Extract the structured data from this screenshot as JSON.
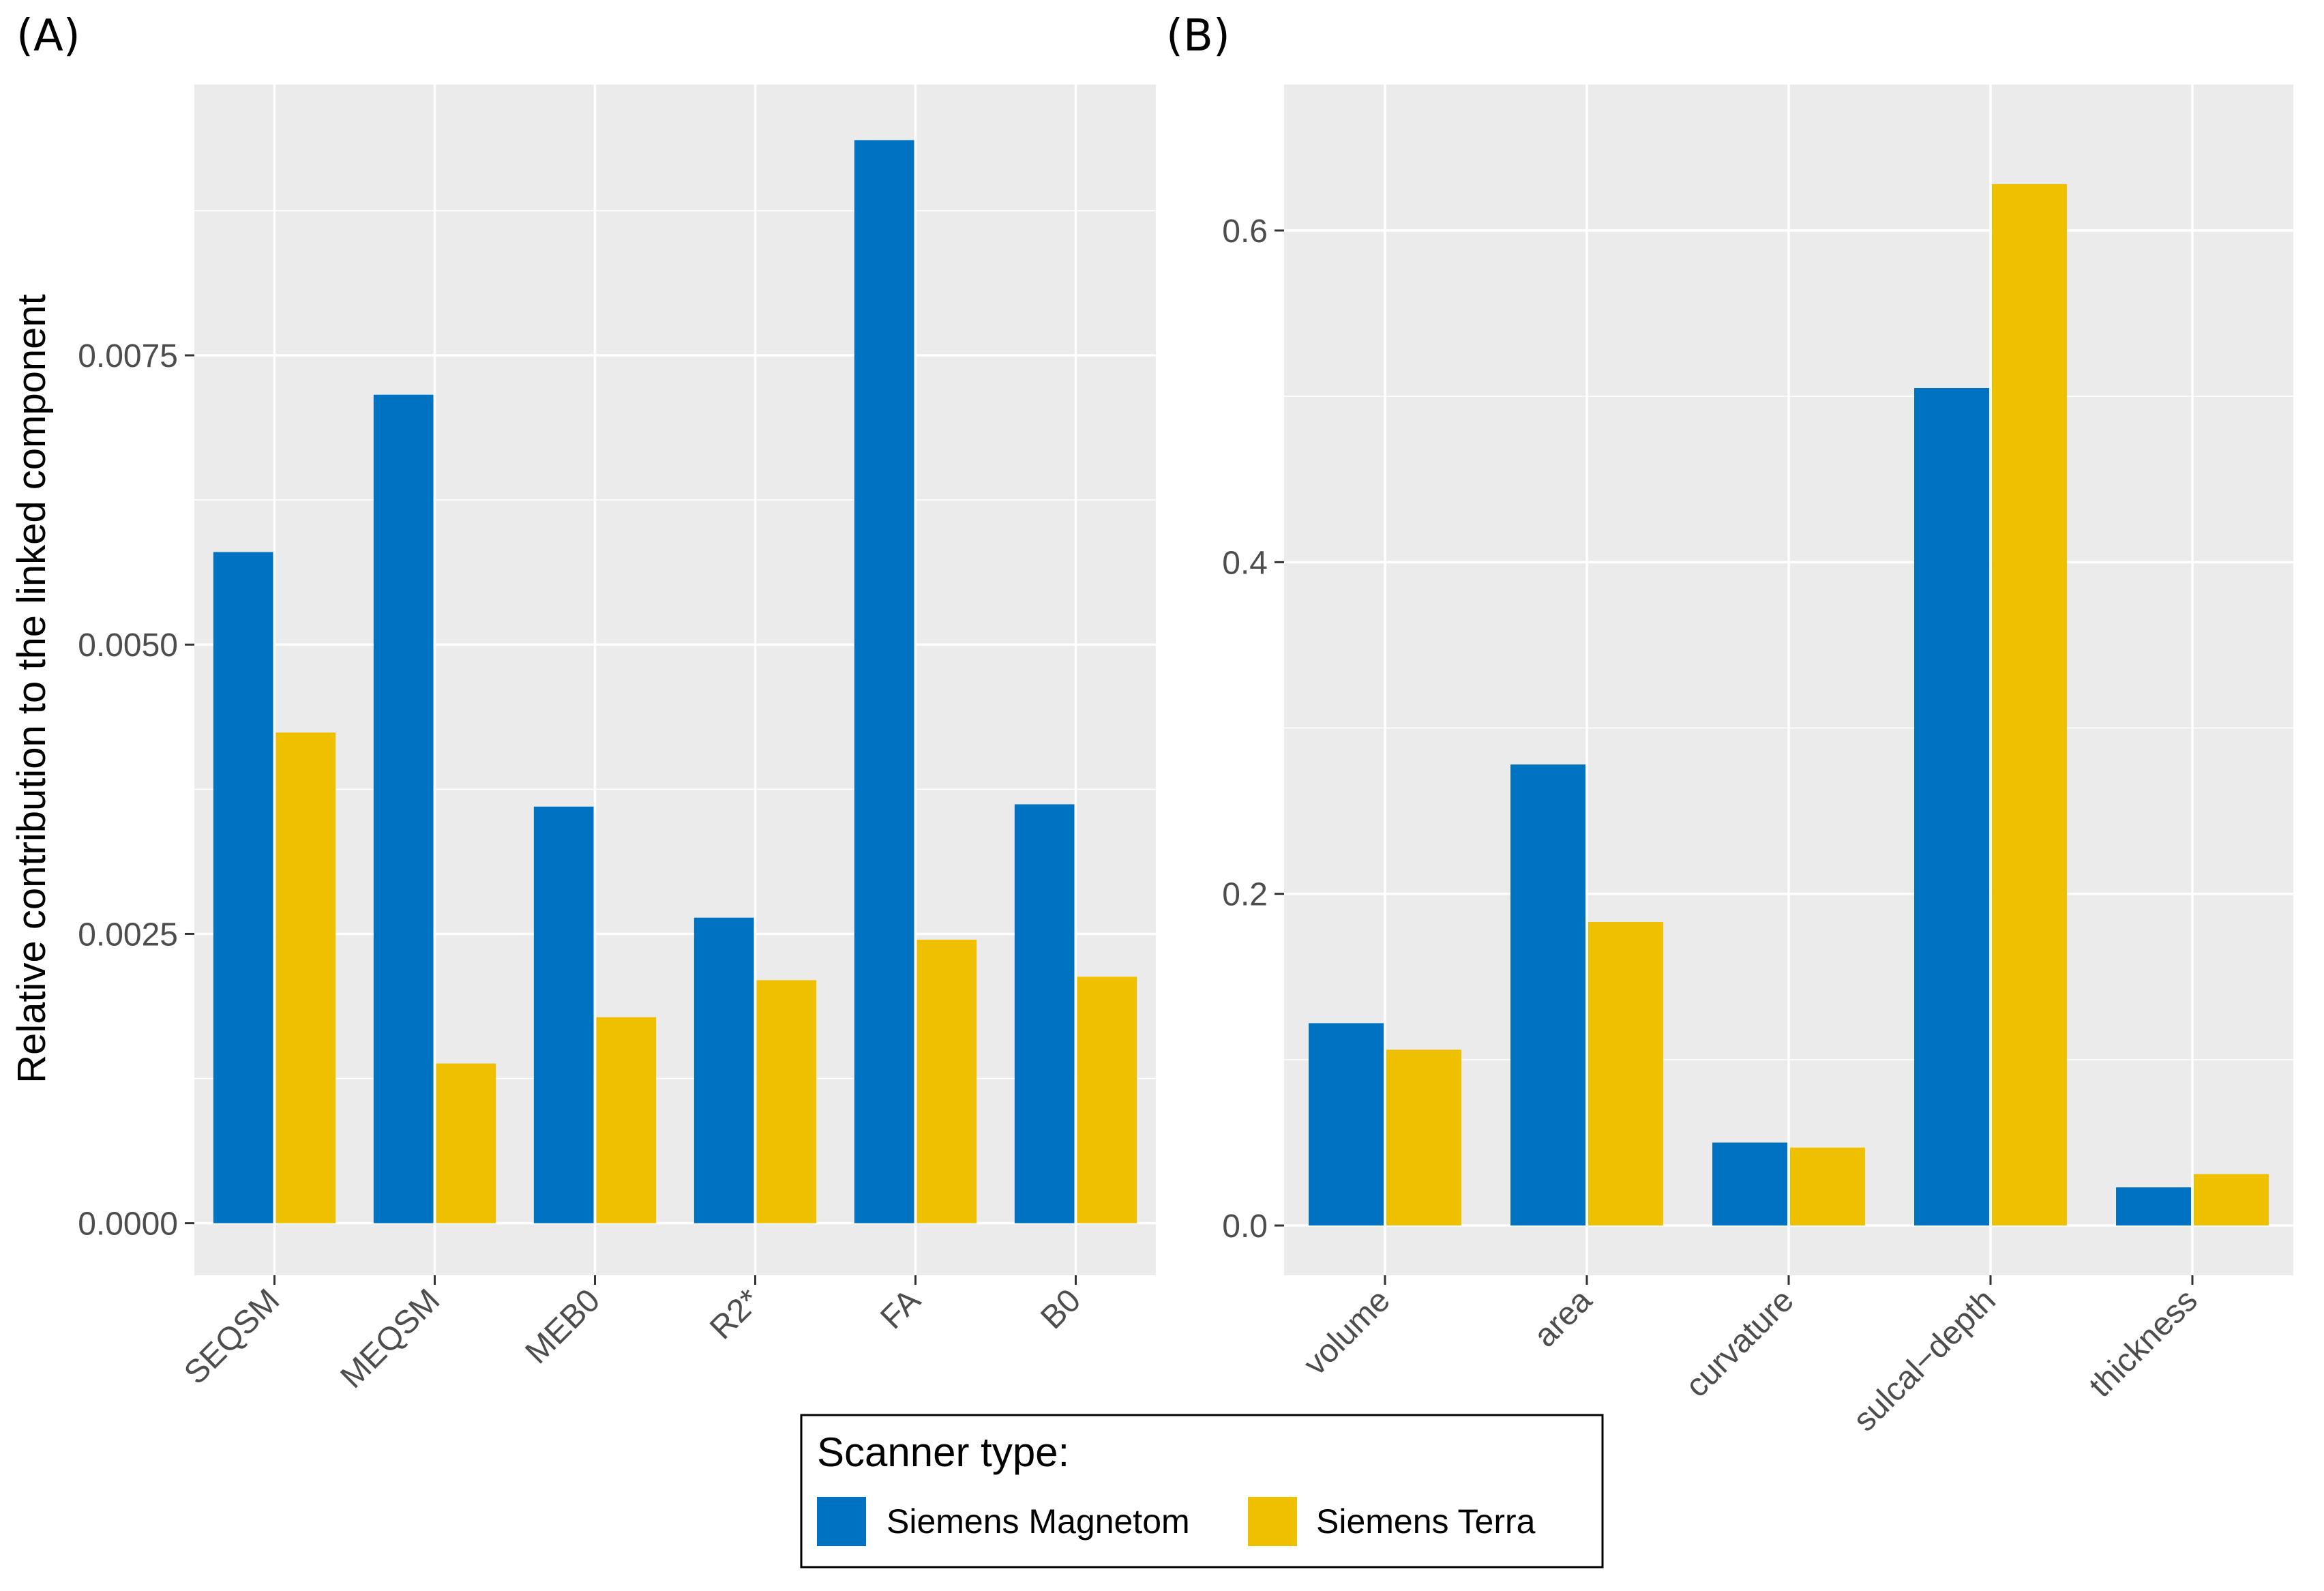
{
  "legend": {
    "title": "Scanner type:",
    "entries": [
      {
        "name": "Siemens Magnetom",
        "color": "#0072c2"
      },
      {
        "name": "Siemens Terra",
        "color": "#efc000"
      }
    ]
  },
  "chart_data": [
    {
      "type": "bar",
      "panel_label": "(A)",
      "title": "",
      "xlabel": "",
      "ylabel": "Relative contribution to the linked component",
      "categories": [
        "SEQSM",
        "MEQSM",
        "MEB0",
        "R2*",
        "FA",
        "B0"
      ],
      "series": [
        {
          "name": "Siemens Magnetom",
          "values": [
            0.0058,
            0.00716,
            0.0036,
            0.00264,
            0.00936,
            0.00362
          ]
        },
        {
          "name": "Siemens Terra",
          "values": [
            0.00424,
            0.00138,
            0.00178,
            0.0021,
            0.00245,
            0.00213
          ]
        }
      ],
      "yticks": [
        0.0,
        0.0025,
        0.005,
        0.0075
      ],
      "ytick_labels": [
        "0.0000",
        "0.0025",
        "0.0050",
        "0.0075"
      ],
      "ylim": [
        -0.00045,
        0.00984
      ]
    },
    {
      "type": "bar",
      "panel_label": "(B)",
      "title": "",
      "xlabel": "",
      "ylabel": "",
      "categories": [
        "volume",
        "area",
        "curvature",
        "sulcal−depth",
        "thickness"
      ],
      "series": [
        {
          "name": "Siemens Magnetom",
          "values": [
            0.122,
            0.278,
            0.05,
            0.505,
            0.023
          ]
        },
        {
          "name": "Siemens Terra",
          "values": [
            0.106,
            0.183,
            0.047,
            0.628,
            0.031
          ]
        }
      ],
      "yticks": [
        0.0,
        0.2,
        0.4,
        0.6
      ],
      "ytick_labels": [
        "0.0",
        "0.2",
        "0.4",
        "0.6"
      ],
      "ylim": [
        -0.03,
        0.688
      ]
    }
  ]
}
